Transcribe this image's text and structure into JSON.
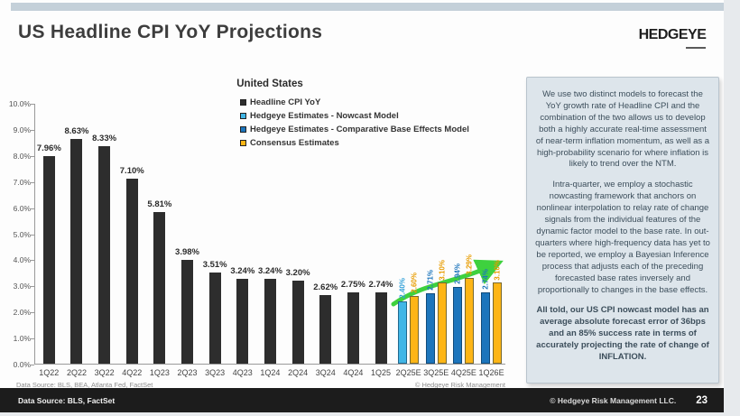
{
  "page": {
    "title": "US Headline CPI YoY Projections",
    "logo": "HEDGEYE",
    "chart_footnote_left": "Data Source: BLS, BEA, Atlanta Fed, FactSet",
    "chart_footnote_right": "© Hedgeye Risk Management",
    "footer_source": "Data Source: BLS, FactSet",
    "footer_copyright": "© Hedgeye Risk Management LLC.",
    "page_number": "23"
  },
  "commentary": {
    "p1": "We use two distinct models to forecast the YoY growth rate of Headline CPI and the combination of the two allows us to develop both a highly accurate real-time assessment of near-term inflation momentum, as well as a high-probability scenario for where inflation is likely to trend over the NTM.",
    "p2": "Intra-quarter, we employ a stochastic nowcasting framework that anchors on nonlinear interpolation to relay rate of change signals from the individual features of the dynamic factor model to the base rate. In out-quarters where high-frequency data has yet to be reported, we employ a Bayesian Inference process that adjusts each of the preceding forecasted base rates inversely and proportionally to changes in the base effects.",
    "p3": "All told, our US CPI nowcast model has an average absolute forecast error of 36bps and an 85% success rate in terms of accurately projecting the rate of change of INFLATION."
  },
  "chart_data": {
    "type": "bar",
    "title": "United States",
    "ylabel": "",
    "xlabel": "",
    "ylim": [
      0,
      10
    ],
    "ytick_step": 1,
    "yticks": [
      "10.0%",
      "9.0%",
      "8.0%",
      "7.0%",
      "6.0%",
      "5.0%",
      "4.0%",
      "3.0%",
      "2.0%",
      "1.0%",
      "0.0%"
    ],
    "grid": false,
    "legend_position": "top",
    "legend": [
      {
        "label": "Headline CPI YoY",
        "color": "#2d2d2d"
      },
      {
        "label": "Hedgeye Estimates - Nowcast Model",
        "color": "#41b6e6"
      },
      {
        "label": "Hedgeye Estimates - Comparative Base Effects Model",
        "color": "#1c75bc"
      },
      {
        "label": "Consensus Estimates",
        "color": "#fdb515"
      }
    ],
    "colors": {
      "actual": "#2d2d2d",
      "nowcast": "#41b6e6",
      "base_effects": "#1c75bc",
      "consensus": "#fdb515",
      "consensus_label": "#e89c00",
      "nowcast_label": "#2f9fd8",
      "arrow": "#3ed13e"
    },
    "actuals": {
      "categories": [
        "1Q22",
        "2Q22",
        "3Q22",
        "4Q22",
        "1Q23",
        "2Q23",
        "3Q23",
        "4Q23",
        "1Q24",
        "2Q24",
        "3Q24",
        "4Q24",
        "1Q25"
      ],
      "values": [
        7.96,
        8.63,
        8.33,
        7.1,
        5.81,
        3.98,
        3.51,
        3.24,
        3.24,
        3.2,
        2.62,
        2.75,
        2.74
      ],
      "labels": [
        "7.96%",
        "8.63%",
        "8.33%",
        "7.10%",
        "5.81%",
        "3.98%",
        "3.51%",
        "3.24%",
        "3.24%",
        "3.20%",
        "2.62%",
        "2.75%",
        "2.74%"
      ]
    },
    "estimates": {
      "categories": [
        "2Q25E",
        "3Q25E",
        "4Q25E",
        "1Q26E"
      ],
      "hedgeye": {
        "models": [
          "nowcast",
          "base_effects",
          "base_effects",
          "base_effects"
        ],
        "values": [
          2.4,
          2.71,
          2.94,
          2.74
        ],
        "labels": [
          "2.40%",
          "2.71%",
          "2.94%",
          "2.74%"
        ]
      },
      "consensus": {
        "values": [
          2.6,
          3.1,
          3.29,
          3.1
        ],
        "labels": [
          "2.60%",
          "3.10%",
          "3.29%",
          "3.10%"
        ]
      }
    },
    "annotation": "green upward trend arrow over estimate bars"
  }
}
